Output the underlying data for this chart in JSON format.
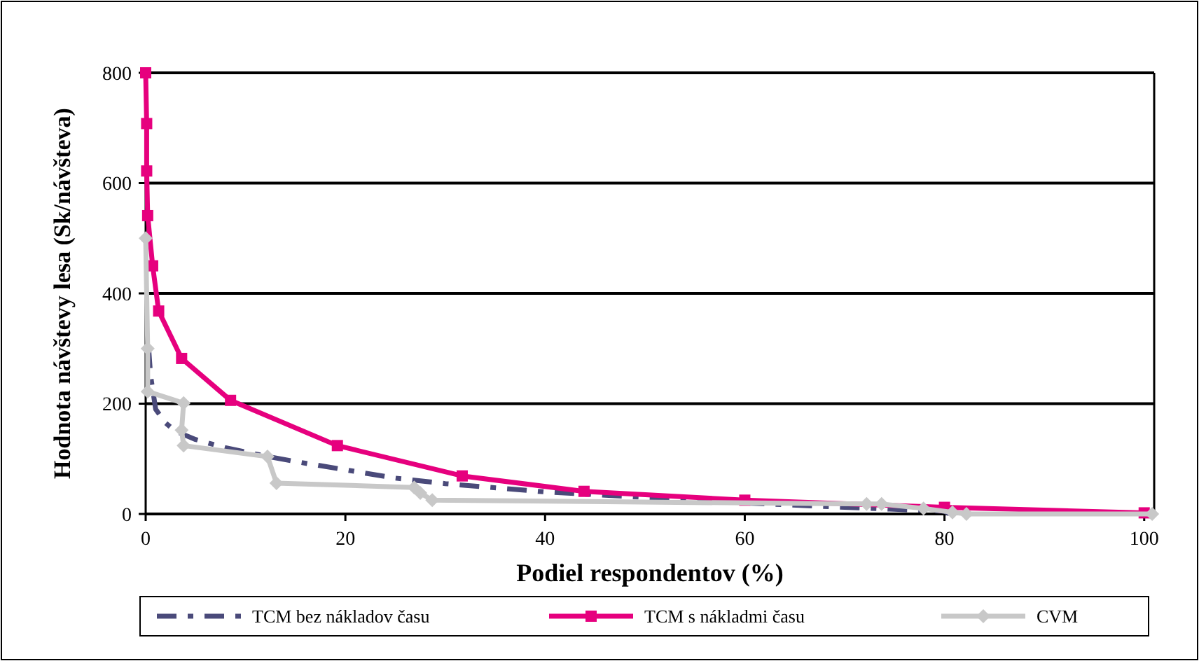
{
  "chart_data": {
    "type": "line",
    "xlabel": "Podiel respondentov (%)",
    "ylabel": "Hodnota návštevy lesa (Sk/návšteva)",
    "xlim": [
      0,
      101
    ],
    "ylim": [
      0,
      800
    ],
    "xticks": [
      0,
      20,
      40,
      60,
      80,
      100
    ],
    "yticks": [
      0,
      200,
      400,
      600,
      800
    ],
    "grid": "y",
    "legend": "bottom",
    "series": [
      {
        "name": "TCM bez nákladov času",
        "color": "#4a4a7a",
        "line_style": "dashdot",
        "marker": "none",
        "x": [
          0.3,
          0.5,
          1,
          2,
          3,
          5,
          8,
          12,
          15,
          20,
          25,
          30,
          40,
          50,
          60,
          70,
          80,
          80.5
        ],
        "values": [
          300,
          250,
          190,
          165,
          150,
          135,
          120,
          105,
          95,
          80,
          65,
          55,
          40,
          30,
          20,
          12,
          5,
          0
        ]
      },
      {
        "name": "TCM s nákladmi času",
        "color": "#e6007e",
        "line_style": "solid",
        "marker": "square",
        "x": [
          0,
          0.1,
          0.1,
          0.2,
          0.7,
          1.3,
          3.6,
          8.5,
          19.2,
          31.7,
          43.9,
          60,
          80,
          100
        ],
        "values": [
          800,
          708,
          622,
          541,
          450,
          368,
          282,
          206,
          124,
          69,
          41,
          25,
          12,
          2
        ]
      },
      {
        "name": "CVM",
        "color": "#c8c8c8",
        "line_style": "solid",
        "marker": "diamond",
        "x": [
          0,
          0.2,
          0.2,
          3.8,
          3.6,
          3.8,
          12.2,
          13.1,
          26.9,
          27.5,
          28.7,
          72.2,
          73.7,
          77.9,
          80.8,
          82.2,
          100.8
        ],
        "values": [
          500,
          300,
          222,
          201,
          152,
          124,
          104,
          56,
          48,
          38,
          25,
          18,
          18,
          10,
          3,
          0,
          0
        ]
      }
    ]
  }
}
